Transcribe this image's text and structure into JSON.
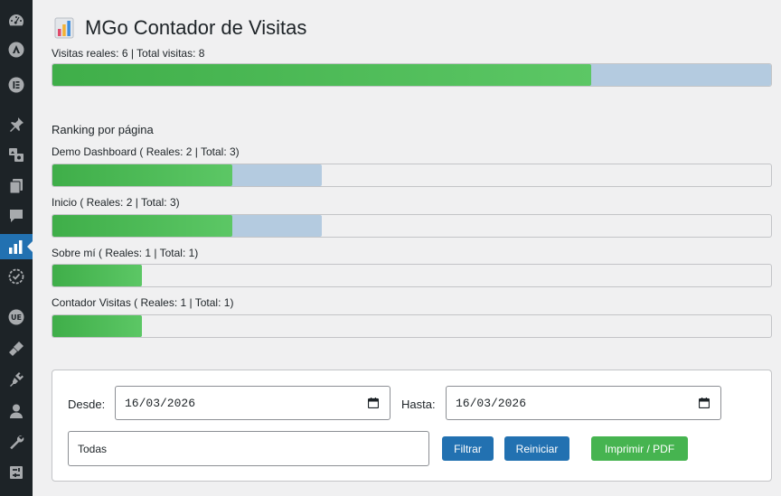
{
  "sidebar": {
    "items": [
      {
        "name": "dashboard-icon"
      },
      {
        "name": "astra-icon"
      },
      {
        "name": "elementor-icon"
      },
      {
        "name": "pin-icon"
      },
      {
        "name": "media-icon"
      },
      {
        "name": "pages-icon"
      },
      {
        "name": "comments-icon"
      },
      {
        "name": "stats-icon",
        "active": true
      },
      {
        "name": "tracker-icon"
      },
      {
        "name": "ue-icon"
      },
      {
        "name": "appearance-icon"
      },
      {
        "name": "plugins-icon"
      },
      {
        "name": "users-icon"
      },
      {
        "name": "tools-icon"
      },
      {
        "name": "settings-icon"
      }
    ]
  },
  "header": {
    "title": "MGo Contador de Visitas"
  },
  "summary": {
    "text": "Visitas reales: 6 | Total visitas: 8",
    "real": 6,
    "total": 8
  },
  "ranking": {
    "title": "Ranking por página",
    "max_total": 8,
    "pages": [
      {
        "label": "Demo Dashboard ( Reales: 2 | Total: 3)",
        "real": 2,
        "total": 3
      },
      {
        "label": "Inicio ( Reales: 2 | Total: 3)",
        "real": 2,
        "total": 3
      },
      {
        "label": "Sobre mí ( Reales: 1 | Total: 1)",
        "real": 1,
        "total": 1
      },
      {
        "label": "Contador Visitas ( Reales: 1 | Total: 1)",
        "real": 1,
        "total": 1
      }
    ]
  },
  "filters": {
    "desde_label": "Desde:",
    "desde_value": "16/03/2026",
    "hasta_label": "Hasta:",
    "hasta_value": "16/03/2026",
    "select_value": "Todas",
    "filtrar_label": "Filtrar",
    "reiniciar_label": "Reiniciar",
    "imprimir_label": "Imprimir / PDF"
  },
  "colors": {
    "sidebar_bg": "#1d2327",
    "active": "#2271b1",
    "bar_real": "#4cbb55",
    "bar_total": "#b4cbe0",
    "button_blue": "#2271b1",
    "button_green": "#46b450"
  }
}
